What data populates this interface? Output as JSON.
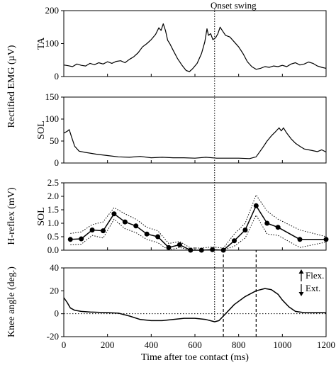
{
  "chart_data": {
    "type": "line",
    "x_axis": {
      "label": "Time after toe contact (ms)",
      "range": [
        0,
        1200
      ],
      "ticks": [
        0,
        200,
        400,
        600,
        800,
        1000,
        1200
      ]
    },
    "onset_swing": {
      "label": "Onset swing",
      "x": 690
    },
    "ylabel_emg": "Rectified EMG (µV)",
    "ylabel_hreflex": "H-reflex (mV)",
    "panels": [
      {
        "id": "ta",
        "name": "TA",
        "ylim": [
          0,
          200
        ],
        "yticks": [
          0,
          100,
          200
        ],
        "series": [
          {
            "values": [
              [
                0,
                35
              ],
              [
                20,
                33
              ],
              [
                40,
                30
              ],
              [
                60,
                38
              ],
              [
                80,
                34
              ],
              [
                100,
                32
              ],
              [
                120,
                40
              ],
              [
                140,
                36
              ],
              [
                160,
                42
              ],
              [
                180,
                38
              ],
              [
                200,
                45
              ],
              [
                220,
                40
              ],
              [
                240,
                46
              ],
              [
                260,
                48
              ],
              [
                280,
                42
              ],
              [
                300,
                52
              ],
              [
                320,
                60
              ],
              [
                340,
                72
              ],
              [
                360,
                90
              ],
              [
                380,
                100
              ],
              [
                400,
                112
              ],
              [
                420,
                128
              ],
              [
                435,
                148
              ],
              [
                445,
                140
              ],
              [
                455,
                160
              ],
              [
                465,
                140
              ],
              [
                475,
                110
              ],
              [
                485,
                100
              ],
              [
                500,
                80
              ],
              [
                520,
                55
              ],
              [
                540,
                35
              ],
              [
                560,
                18
              ],
              [
                575,
                15
              ],
              [
                590,
                24
              ],
              [
                610,
                40
              ],
              [
                630,
                70
              ],
              [
                645,
                105
              ],
              [
                655,
                145
              ],
              [
                662,
                125
              ],
              [
                672,
                130
              ],
              [
                682,
                112
              ],
              [
                695,
                118
              ],
              [
                705,
                130
              ],
              [
                715,
                150
              ],
              [
                725,
                140
              ],
              [
                740,
                125
              ],
              [
                760,
                120
              ],
              [
                780,
                105
              ],
              [
                800,
                90
              ],
              [
                820,
                70
              ],
              [
                840,
                45
              ],
              [
                860,
                30
              ],
              [
                880,
                22
              ],
              [
                900,
                25
              ],
              [
                920,
                30
              ],
              [
                940,
                28
              ],
              [
                960,
                32
              ],
              [
                980,
                30
              ],
              [
                1000,
                34
              ],
              [
                1020,
                30
              ],
              [
                1040,
                38
              ],
              [
                1060,
                42
              ],
              [
                1080,
                35
              ],
              [
                1100,
                38
              ],
              [
                1120,
                44
              ],
              [
                1140,
                40
              ],
              [
                1160,
                32
              ],
              [
                1180,
                28
              ],
              [
                1200,
                25
              ]
            ]
          }
        ]
      },
      {
        "id": "sol",
        "name": "SOL",
        "ylim": [
          0,
          150
        ],
        "yticks": [
          0,
          50,
          100,
          150
        ],
        "series": [
          {
            "values": [
              [
                0,
                68
              ],
              [
                15,
                72
              ],
              [
                25,
                76
              ],
              [
                35,
                60
              ],
              [
                50,
                38
              ],
              [
                70,
                27
              ],
              [
                100,
                24
              ],
              [
                150,
                20
              ],
              [
                200,
                17
              ],
              [
                250,
                14
              ],
              [
                300,
                13
              ],
              [
                350,
                15
              ],
              [
                400,
                12
              ],
              [
                450,
                13
              ],
              [
                500,
                12
              ],
              [
                550,
                12
              ],
              [
                600,
                11
              ],
              [
                650,
                13
              ],
              [
                700,
                11
              ],
              [
                750,
                11
              ],
              [
                800,
                11
              ],
              [
                850,
                10
              ],
              [
                880,
                14
              ],
              [
                910,
                35
              ],
              [
                930,
                50
              ],
              [
                950,
                62
              ],
              [
                970,
                72
              ],
              [
                985,
                80
              ],
              [
                995,
                73
              ],
              [
                1005,
                80
              ],
              [
                1020,
                68
              ],
              [
                1040,
                55
              ],
              [
                1060,
                45
              ],
              [
                1080,
                38
              ],
              [
                1100,
                32
              ],
              [
                1120,
                30
              ],
              [
                1140,
                28
              ],
              [
                1160,
                26
              ],
              [
                1180,
                30
              ],
              [
                1200,
                25
              ]
            ]
          }
        ]
      },
      {
        "id": "hreflex",
        "name": "SOL",
        "ylim": [
          0,
          2.5
        ],
        "yticks": [
          "0.0",
          "0.5",
          "1.0",
          "1.5",
          "2.0",
          "2.5"
        ],
        "series": [
          {
            "style": "mean",
            "values": [
              [
                30,
                0.4
              ],
              [
                80,
                0.42
              ],
              [
                130,
                0.75
              ],
              [
                180,
                0.72
              ],
              [
                230,
                1.35
              ],
              [
                280,
                1.05
              ],
              [
                330,
                0.9
              ],
              [
                380,
                0.6
              ],
              [
                430,
                0.5
              ],
              [
                480,
                0.1
              ],
              [
                530,
                0.2
              ],
              [
                580,
                0.0
              ],
              [
                630,
                0.0
              ],
              [
                680,
                0.02
              ],
              [
                730,
                0.0
              ],
              [
                780,
                0.35
              ],
              [
                830,
                0.75
              ],
              [
                880,
                1.65
              ],
              [
                930,
                1.0
              ],
              [
                980,
                0.85
              ],
              [
                1080,
                0.4
              ],
              [
                1200,
                0.4
              ]
            ]
          },
          {
            "style": "upper",
            "values": [
              [
                30,
                0.62
              ],
              [
                80,
                0.68
              ],
              [
                130,
                0.95
              ],
              [
                180,
                1.05
              ],
              [
                230,
                1.58
              ],
              [
                280,
                1.35
              ],
              [
                330,
                1.15
              ],
              [
                380,
                0.85
              ],
              [
                430,
                0.72
              ],
              [
                480,
                0.25
              ],
              [
                530,
                0.32
              ],
              [
                580,
                0.08
              ],
              [
                630,
                0.08
              ],
              [
                680,
                0.12
              ],
              [
                730,
                0.08
              ],
              [
                780,
                0.6
              ],
              [
                830,
                1.0
              ],
              [
                880,
                2.05
              ],
              [
                930,
                1.45
              ],
              [
                980,
                1.15
              ],
              [
                1080,
                0.75
              ],
              [
                1200,
                0.5
              ]
            ]
          },
          {
            "style": "lower",
            "values": [
              [
                30,
                0.2
              ],
              [
                80,
                0.22
              ],
              [
                130,
                0.55
              ],
              [
                180,
                0.45
              ],
              [
                230,
                1.15
              ],
              [
                280,
                0.8
              ],
              [
                330,
                0.65
              ],
              [
                380,
                0.4
              ],
              [
                430,
                0.28
              ],
              [
                480,
                0.0
              ],
              [
                530,
                0.1
              ],
              [
                580,
                0.0
              ],
              [
                630,
                0.0
              ],
              [
                680,
                0.0
              ],
              [
                730,
                0.0
              ],
              [
                780,
                0.15
              ],
              [
                830,
                0.45
              ],
              [
                880,
                1.3
              ],
              [
                930,
                0.6
              ],
              [
                980,
                0.55
              ],
              [
                1080,
                0.1
              ],
              [
                1200,
                0.3
              ]
            ]
          }
        ]
      },
      {
        "id": "knee",
        "name": "",
        "ylabel": "Knee angle (deg.)",
        "ylim": [
          -20,
          40
        ],
        "yticks": [
          -20,
          0,
          20,
          40
        ],
        "annotations": [
          "Flex.",
          "Ext."
        ],
        "markers": [
          730,
          880
        ],
        "series": [
          {
            "values": [
              [
                0,
                14
              ],
              [
                15,
                10
              ],
              [
                30,
                5
              ],
              [
                50,
                3
              ],
              [
                80,
                2
              ],
              [
                120,
                1.5
              ],
              [
                200,
                1
              ],
              [
                250,
                0.5
              ],
              [
                300,
                -2
              ],
              [
                350,
                -5
              ],
              [
                400,
                -6
              ],
              [
                450,
                -6
              ],
              [
                500,
                -5
              ],
              [
                550,
                -4
              ],
              [
                600,
                -4
              ],
              [
                650,
                -5
              ],
              [
                690,
                -7
              ],
              [
                710,
                -6
              ],
              [
                740,
                0
              ],
              [
                780,
                8
              ],
              [
                830,
                15
              ],
              [
                880,
                20
              ],
              [
                920,
                22
              ],
              [
                950,
                21
              ],
              [
                980,
                17
              ],
              [
                1000,
                12
              ],
              [
                1030,
                6
              ],
              [
                1060,
                2
              ],
              [
                1100,
                1
              ],
              [
                1150,
                1
              ],
              [
                1200,
                1
              ]
            ]
          }
        ]
      }
    ]
  }
}
